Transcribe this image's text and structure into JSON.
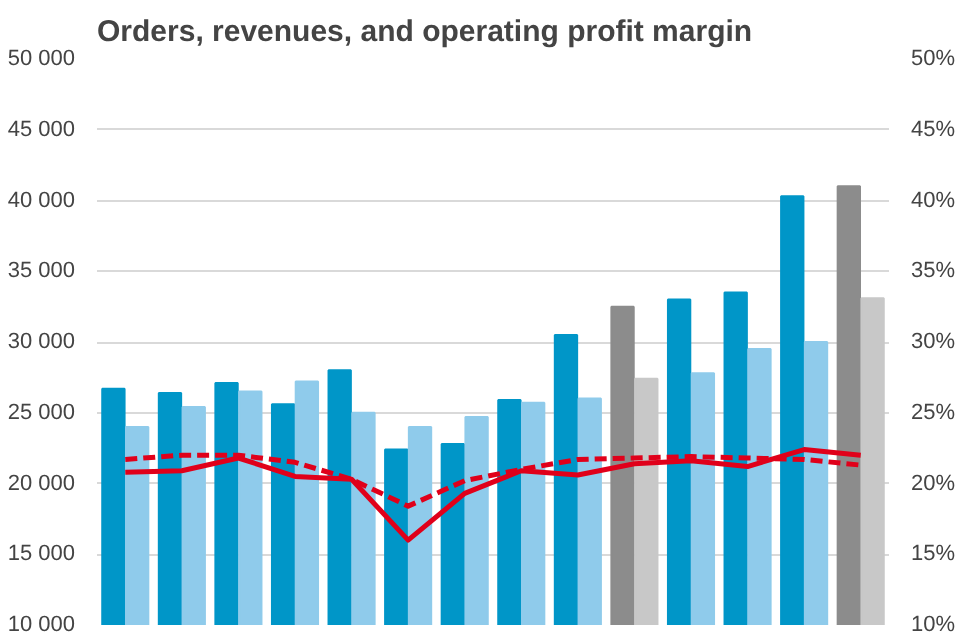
{
  "chart_data": {
    "type": "bar",
    "title": "Orders, revenues, and operating profit margin",
    "categories": [
      null,
      null,
      null,
      null,
      null,
      null,
      null,
      null,
      null,
      null,
      null,
      null,
      null,
      null
    ],
    "series": [
      {
        "colors": [
          "#0096c8",
          "#0096c8",
          "#0096c8",
          "#0096c8",
          "#0096c8",
          "#0096c8",
          "#0096c8",
          "#0096c8",
          "#0096c8",
          "#8c8c8c",
          "#0096c8",
          "#0096c8",
          "#0096c8",
          "#8c8c8c"
        ],
        "values": [
          26700,
          26400,
          27100,
          25600,
          28000,
          22400,
          22800,
          25900,
          30500,
          32500,
          33000,
          33500,
          40300,
          41000
        ]
      },
      {
        "colors": [
          "#8fcbeb",
          "#8fcbeb",
          "#8fcbeb",
          "#8fcbeb",
          "#8fcbeb",
          "#8fcbeb",
          "#8fcbeb",
          "#8fcbeb",
          "#8fcbeb",
          "#c8c8c8",
          "#8fcbeb",
          "#8fcbeb",
          "#8fcbeb",
          "#c8c8c8"
        ],
        "values": [
          24000,
          25400,
          26500,
          27200,
          25000,
          24000,
          24700,
          25700,
          26000,
          27400,
          27800,
          29500,
          30000,
          33100
        ]
      },
      {
        "type": "line",
        "axis": "y2",
        "color": "#e0001a",
        "line_style": "solid",
        "values": [
          20.8,
          20.9,
          21.8,
          20.5,
          20.3,
          16.0,
          19.3,
          20.9,
          20.6,
          21.4,
          21.6,
          21.2,
          22.4,
          22.0
        ]
      },
      {
        "type": "line",
        "axis": "y2",
        "color": "#e0001a",
        "line_style": "dashed",
        "values": [
          21.7,
          22.0,
          22.0,
          21.5,
          20.3,
          18.4,
          20.2,
          21.0,
          21.7,
          21.8,
          21.9,
          21.8,
          21.7,
          21.3
        ]
      }
    ],
    "ylim": [
      10000,
      50000
    ],
    "yticks": [
      {
        "value": 10000,
        "label": "10 000"
      },
      {
        "value": 15000,
        "label": "15 000"
      },
      {
        "value": 20000,
        "label": "20 000"
      },
      {
        "value": 25000,
        "label": "25 000"
      },
      {
        "value": 30000,
        "label": "30 000"
      },
      {
        "value": 35000,
        "label": "35 000"
      },
      {
        "value": 40000,
        "label": "40 000"
      },
      {
        "value": 45000,
        "label": "45 000"
      },
      {
        "value": 50000,
        "label": "50 000"
      }
    ],
    "y2lim": [
      10,
      50
    ],
    "y2ticks": [
      {
        "value": 10,
        "label": "10%"
      },
      {
        "value": 15,
        "label": "15%"
      },
      {
        "value": 20,
        "label": "20%"
      },
      {
        "value": 25,
        "label": "25%"
      },
      {
        "value": 30,
        "label": "30%"
      },
      {
        "value": 35,
        "label": "35%"
      },
      {
        "value": 40,
        "label": "40%"
      },
      {
        "value": 45,
        "label": "45%"
      },
      {
        "value": 50,
        "label": "50%"
      }
    ],
    "grid": "y"
  }
}
